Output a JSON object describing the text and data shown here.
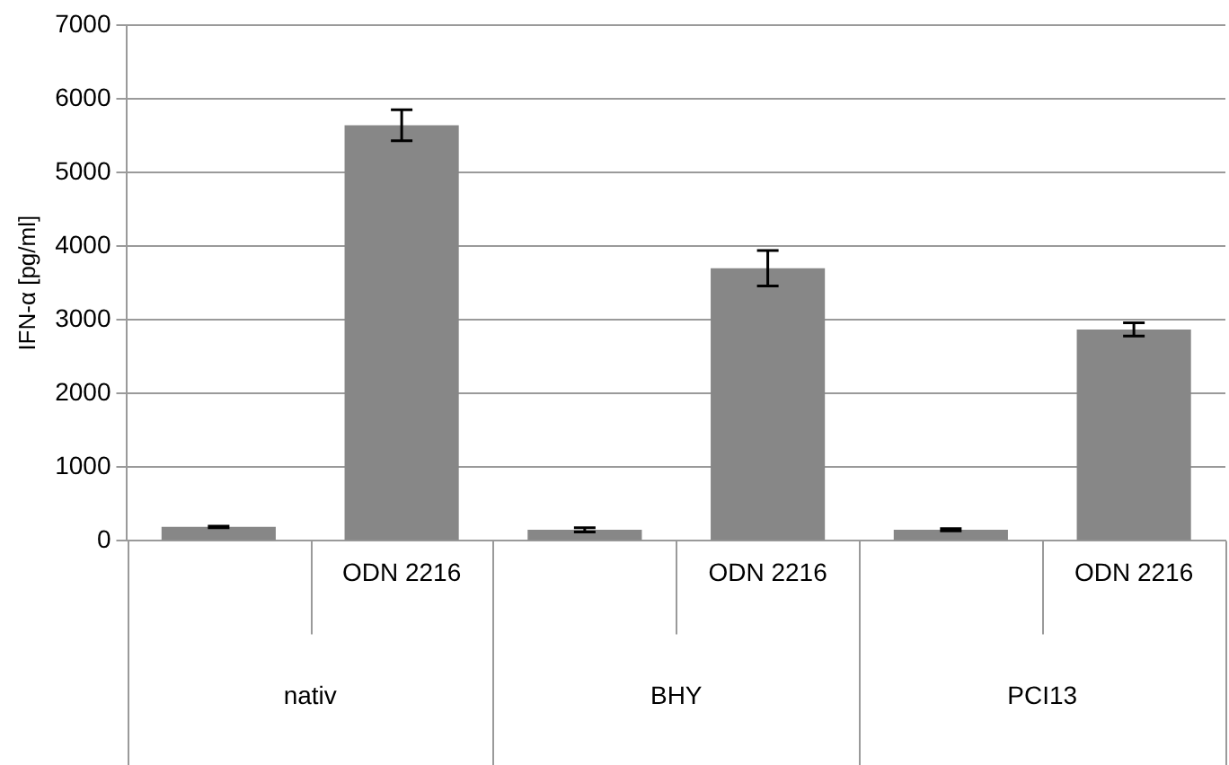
{
  "chart_data": {
    "type": "bar",
    "ylabel": "IFN-α [pg/ml]",
    "categories": [
      null,
      "ODN 2216",
      null,
      "ODN 2216",
      null,
      "ODN 2216"
    ],
    "values": [
      190,
      5640,
      150,
      3700,
      150,
      2870
    ],
    "errors": [
      10,
      210,
      30,
      240,
      15,
      90
    ],
    "color": "#878787",
    "ylim": [
      0,
      7000
    ],
    "yticks": [
      0,
      1000,
      2000,
      3000,
      4000,
      5000,
      6000,
      7000
    ],
    "grid": "y",
    "annotations": [
      "nativ",
      "BHY",
      "PCI13"
    ]
  }
}
